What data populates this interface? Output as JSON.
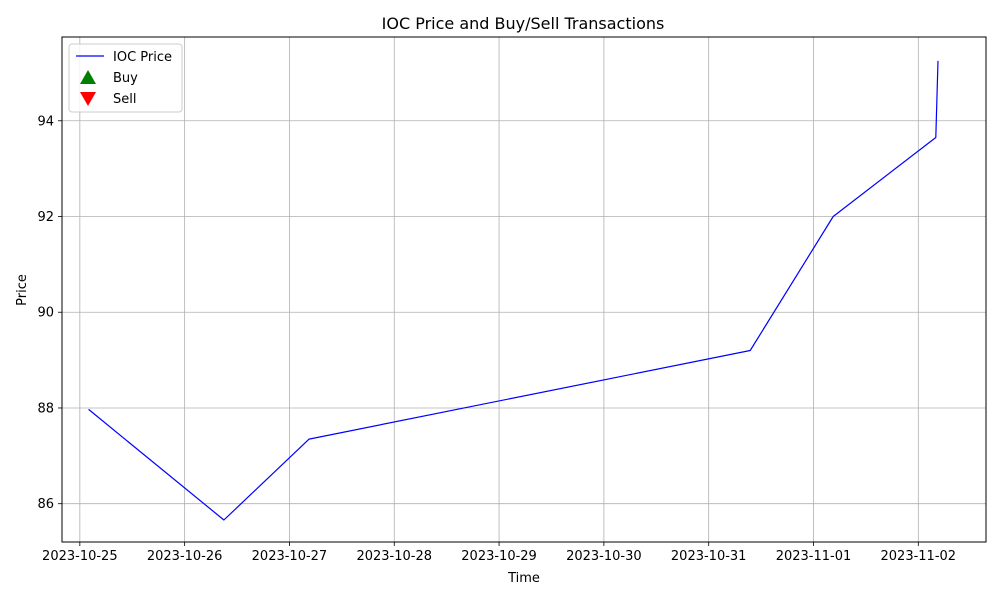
{
  "chart_data": {
    "type": "line",
    "title": "IOC Price and Buy/Sell Transactions",
    "xlabel": "Time",
    "ylabel": "Price",
    "x_ticks": [
      "2023-10-25",
      "2023-10-26",
      "2023-10-27",
      "2023-10-28",
      "2023-10-29",
      "2023-10-30",
      "2023-10-31",
      "2023-11-01",
      "2023-11-02"
    ],
    "y_ticks": [
      86,
      88,
      90,
      92,
      94
    ],
    "xlim": [
      "2023-10-24 19:55",
      "2023-11-02 15:30"
    ],
    "ylim": [
      85.2,
      95.75
    ],
    "grid": true,
    "legend_position": "upper-left",
    "series": [
      {
        "name": "IOC Price",
        "color": "#0000ff",
        "x": [
          "2023-10-25 02:00",
          "2023-10-26 09:00",
          "2023-10-27 04:30",
          "2023-10-31 09:30",
          "2023-11-01 04:30",
          "2023-11-02 04:00",
          "2023-11-02 04:30"
        ],
        "y": [
          87.97,
          85.66,
          87.35,
          89.2,
          92.0,
          93.65,
          95.25
        ]
      }
    ],
    "transactions": [
      {
        "name": "Buy",
        "marker": "triangle-up",
        "color": "#008000",
        "x": [],
        "y": []
      },
      {
        "name": "Sell",
        "marker": "triangle-down",
        "color": "#ff0000",
        "x": [],
        "y": []
      }
    ]
  }
}
